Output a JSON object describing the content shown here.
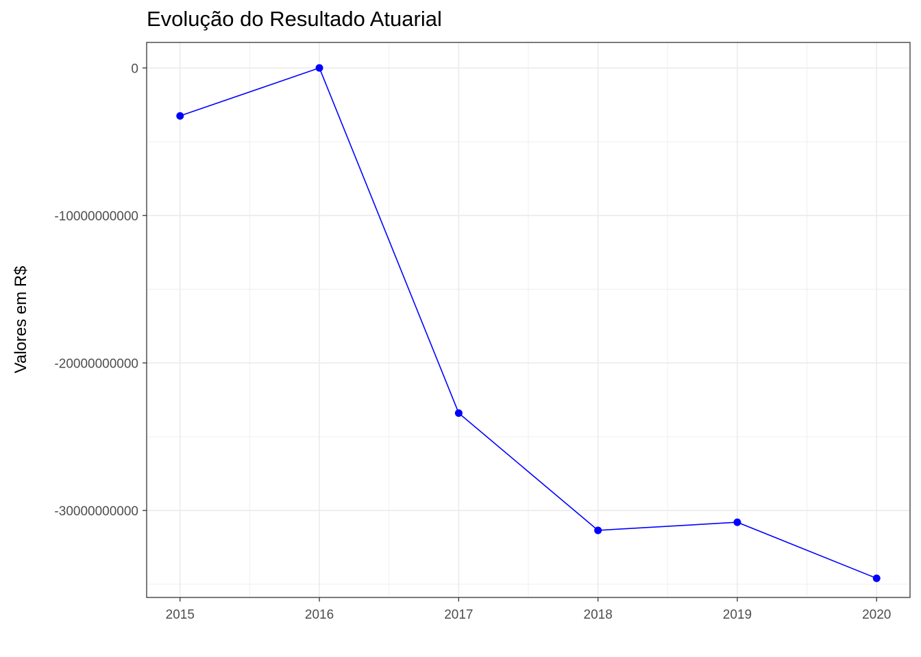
{
  "chart_data": {
    "type": "line",
    "title": "Evolução do Resultado Atuarial",
    "xlabel": "",
    "ylabel": "Valores em R$",
    "x": [
      2015,
      2016,
      2017,
      2018,
      2019,
      2020
    ],
    "y_ticks": [
      {
        "value": 0,
        "label": "0"
      },
      {
        "value": -10000000000,
        "label": "-10000000000"
      },
      {
        "value": -20000000000,
        "label": "-20000000000"
      },
      {
        "value": -30000000000,
        "label": "-30000000000"
      }
    ],
    "series": [
      {
        "values": [
          -3250000000,
          0,
          -23400000000,
          -31350000000,
          -30800000000,
          -34600000000
        ],
        "color": "#0000ff"
      }
    ],
    "xlim": [
      2014.76,
      2020.24
    ],
    "ylim": [
      -35900000000,
      1730000000
    ],
    "grid": true,
    "legend": "none",
    "theme": "bw"
  }
}
